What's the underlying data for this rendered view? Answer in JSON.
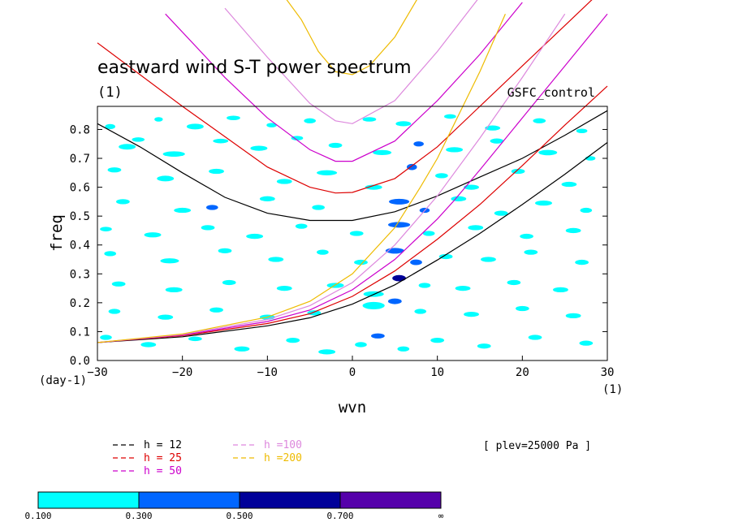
{
  "chart_data": {
    "type": "heatmap",
    "title": "eastward wind S-T power spectrum",
    "title_units": "(1)",
    "run_label": "GSFC_control",
    "xlabel": "wvn",
    "ylabel": "freq",
    "x_units": "(1)",
    "y_units": "(day-1)",
    "xlim": [
      -30,
      30
    ],
    "ylim": [
      0,
      0.88
    ],
    "x_ticks": [
      -30,
      -20,
      -10,
      0,
      10,
      20,
      30
    ],
    "x_tick_labels": [
      "−30",
      "−20",
      "−10",
      "0",
      "10",
      "20",
      "30"
    ],
    "y_ticks": [
      0,
      0.1,
      0.2,
      0.3,
      0.4,
      0.5,
      0.6,
      0.7,
      0.8
    ],
    "y_tick_labels": [
      "0.0",
      "0.1",
      "0.2",
      "0.3",
      "0.4",
      "0.5",
      "0.6",
      "0.7",
      "0.8"
    ],
    "annotation": "[ plev=25000 Pa ]",
    "dispersion_curves": [
      {
        "h": 12,
        "label": "h = 12",
        "color": "#000000",
        "points": [
          [
            -30,
            0.062
          ],
          [
            -20,
            0.082
          ],
          [
            -10,
            0.12
          ],
          [
            -5,
            0.148
          ],
          [
            0,
            0.195
          ],
          [
            5,
            0.262
          ],
          [
            10,
            0.348
          ],
          [
            15,
            0.44
          ],
          [
            20,
            0.54
          ],
          [
            25,
            0.645
          ],
          [
            30,
            0.755
          ]
        ]
      },
      {
        "h": 12,
        "branch": "inertia-gravity",
        "color": "#000000",
        "points": [
          [
            -30,
            0.82
          ],
          [
            -25,
            0.74
          ],
          [
            -20,
            0.65
          ],
          [
            -15,
            0.565
          ],
          [
            -10,
            0.51
          ],
          [
            -5,
            0.485
          ],
          [
            0,
            0.485
          ],
          [
            5,
            0.515
          ],
          [
            10,
            0.57
          ],
          [
            15,
            0.635
          ],
          [
            20,
            0.7
          ],
          [
            25,
            0.78
          ],
          [
            30,
            0.865
          ]
        ]
      },
      {
        "h": 25,
        "label": "h = 25",
        "color": "#dd0000",
        "points": [
          [
            -30,
            0.062
          ],
          [
            -20,
            0.086
          ],
          [
            -10,
            0.128
          ],
          [
            -5,
            0.162
          ],
          [
            0,
            0.222
          ],
          [
            5,
            0.31
          ],
          [
            10,
            0.42
          ],
          [
            15,
            0.54
          ],
          [
            20,
            0.675
          ],
          [
            25,
            0.815
          ],
          [
            30,
            0.95
          ]
        ]
      },
      {
        "h": 25,
        "branch": "inertia-gravity",
        "color": "#dd0000",
        "points": [
          [
            -30,
            1.1
          ],
          [
            -20,
            0.88
          ],
          [
            -10,
            0.67
          ],
          [
            -5,
            0.6
          ],
          [
            -2,
            0.58
          ],
          [
            0,
            0.582
          ],
          [
            5,
            0.63
          ],
          [
            10,
            0.74
          ],
          [
            15,
            0.88
          ],
          [
            20,
            1.02
          ],
          [
            25,
            1.16
          ],
          [
            30,
            1.3
          ]
        ]
      },
      {
        "h": 50,
        "label": "h = 50",
        "color": "#cc00cc",
        "points": [
          [
            -30,
            0.062
          ],
          [
            -20,
            0.088
          ],
          [
            -10,
            0.135
          ],
          [
            -5,
            0.175
          ],
          [
            0,
            0.245
          ],
          [
            5,
            0.35
          ],
          [
            10,
            0.49
          ],
          [
            12,
            0.555
          ],
          [
            15,
            0.66
          ],
          [
            20,
            0.84
          ],
          [
            25,
            1.02
          ],
          [
            30,
            1.2
          ]
        ]
      },
      {
        "h": 50,
        "branch": "inertia-gravity",
        "color": "#cc00cc",
        "points": [
          [
            -22,
            1.2
          ],
          [
            -15,
            0.98
          ],
          [
            -10,
            0.84
          ],
          [
            -5,
            0.73
          ],
          [
            -2,
            0.69
          ],
          [
            0,
            0.69
          ],
          [
            5,
            0.76
          ],
          [
            10,
            0.9
          ],
          [
            15,
            1.06
          ],
          [
            20,
            1.24
          ]
        ]
      },
      {
        "h": 100,
        "label": "h =100",
        "color": "#dd88dd",
        "points": [
          [
            -30,
            0.062
          ],
          [
            -20,
            0.09
          ],
          [
            -10,
            0.142
          ],
          [
            -5,
            0.19
          ],
          [
            0,
            0.27
          ],
          [
            5,
            0.4
          ],
          [
            10,
            0.57
          ],
          [
            15,
            0.77
          ],
          [
            20,
            0.98
          ],
          [
            25,
            1.2
          ]
        ]
      },
      {
        "h": 100,
        "branch": "inertia-gravity",
        "color": "#dd88dd",
        "points": [
          [
            -15,
            1.22
          ],
          [
            -10,
            1.05
          ],
          [
            -5,
            0.89
          ],
          [
            -2,
            0.83
          ],
          [
            0,
            0.82
          ],
          [
            5,
            0.9
          ],
          [
            10,
            1.07
          ],
          [
            15,
            1.26
          ]
        ]
      },
      {
        "h": 200,
        "label": "h =200",
        "color": "#eebb00",
        "points": [
          [
            -30,
            0.062
          ],
          [
            -20,
            0.092
          ],
          [
            -10,
            0.15
          ],
          [
            -5,
            0.205
          ],
          [
            0,
            0.3
          ],
          [
            5,
            0.46
          ],
          [
            8,
            0.6
          ],
          [
            10,
            0.7
          ],
          [
            12,
            0.82
          ],
          [
            15,
            1.0
          ],
          [
            18,
            1.2
          ]
        ]
      },
      {
        "h": 200,
        "branch": "inertia-gravity",
        "color": "#eebb00",
        "points": [
          [
            -9,
            1.3
          ],
          [
            -6,
            1.18
          ],
          [
            -4,
            1.07
          ],
          [
            -2,
            1.0
          ],
          [
            0,
            0.99
          ],
          [
            2,
            1.02
          ],
          [
            5,
            1.12
          ],
          [
            8,
            1.27
          ]
        ]
      }
    ],
    "colorbar": {
      "levels": [
        "0.100",
        "0.300",
        "0.500",
        "0.700",
        "∞"
      ],
      "colors": [
        "#00ffff",
        "#0066ff",
        "#000099",
        "#5500aa"
      ]
    },
    "patches": [
      [
        -28.5,
        0.81,
        1.2,
        0.012,
        0
      ],
      [
        -25.2,
        0.765,
        1.5,
        0.01,
        0
      ],
      [
        -22.8,
        0.835,
        1.0,
        0.01,
        0
      ],
      [
        -18.5,
        0.81,
        2.0,
        0.014,
        0
      ],
      [
        -14.0,
        0.84,
        1.6,
        0.01,
        0
      ],
      [
        -9.5,
        0.815,
        1.2,
        0.01,
        0
      ],
      [
        -5.0,
        0.83,
        1.4,
        0.012,
        0
      ],
      [
        2.0,
        0.835,
        1.6,
        0.01,
        0
      ],
      [
        6.0,
        0.82,
        1.8,
        0.012,
        0
      ],
      [
        11.5,
        0.845,
        1.4,
        0.01,
        0
      ],
      [
        16.5,
        0.805,
        1.8,
        0.012,
        0
      ],
      [
        22.0,
        0.83,
        1.5,
        0.012,
        0
      ],
      [
        27.0,
        0.795,
        1.3,
        0.01,
        0
      ],
      [
        -26.5,
        0.74,
        2.0,
        0.014,
        0
      ],
      [
        -21.0,
        0.715,
        2.6,
        0.013,
        0
      ],
      [
        -15.5,
        0.76,
        1.8,
        0.01,
        0
      ],
      [
        -11.0,
        0.735,
        2.0,
        0.012,
        0
      ],
      [
        -6.5,
        0.77,
        1.4,
        0.01,
        0
      ],
      [
        -2.0,
        0.745,
        1.6,
        0.012,
        0
      ],
      [
        3.5,
        0.72,
        2.2,
        0.012,
        0
      ],
      [
        7.8,
        0.75,
        1.2,
        0.012,
        1
      ],
      [
        12.0,
        0.73,
        2.0,
        0.012,
        0
      ],
      [
        17.0,
        0.76,
        1.6,
        0.012,
        0
      ],
      [
        23.0,
        0.72,
        2.2,
        0.013,
        0
      ],
      [
        28.0,
        0.7,
        1.2,
        0.01,
        0
      ],
      [
        -28.0,
        0.66,
        1.6,
        0.012,
        0
      ],
      [
        -22.0,
        0.63,
        2.0,
        0.014,
        0
      ],
      [
        -16.0,
        0.655,
        1.8,
        0.012,
        0
      ],
      [
        -8.0,
        0.62,
        1.8,
        0.012,
        0
      ],
      [
        -3.0,
        0.65,
        2.4,
        0.012,
        0
      ],
      [
        2.5,
        0.6,
        2.0,
        0.012,
        0
      ],
      [
        7.0,
        0.67,
        1.2,
        0.016,
        1
      ],
      [
        10.5,
        0.64,
        1.5,
        0.012,
        0
      ],
      [
        14.0,
        0.6,
        1.8,
        0.012,
        0
      ],
      [
        19.5,
        0.655,
        1.6,
        0.012,
        0
      ],
      [
        25.5,
        0.61,
        1.8,
        0.012,
        0
      ],
      [
        -27.0,
        0.55,
        1.6,
        0.012,
        0
      ],
      [
        -20.0,
        0.52,
        2.0,
        0.012,
        0
      ],
      [
        -16.5,
        0.53,
        1.4,
        0.012,
        1
      ],
      [
        -10.0,
        0.56,
        1.8,
        0.012,
        0
      ],
      [
        -4.0,
        0.53,
        1.5,
        0.012,
        0
      ],
      [
        5.5,
        0.55,
        2.4,
        0.014,
        1
      ],
      [
        8.5,
        0.52,
        1.2,
        0.012,
        1
      ],
      [
        12.5,
        0.56,
        1.8,
        0.012,
        0
      ],
      [
        17.5,
        0.51,
        1.6,
        0.012,
        0
      ],
      [
        22.5,
        0.545,
        2.0,
        0.012,
        0
      ],
      [
        27.5,
        0.52,
        1.4,
        0.012,
        0
      ],
      [
        -29.0,
        0.455,
        1.4,
        0.01,
        0
      ],
      [
        -23.5,
        0.435,
        2.0,
        0.012,
        0
      ],
      [
        -17.0,
        0.46,
        1.6,
        0.012,
        0
      ],
      [
        -11.5,
        0.43,
        2.0,
        0.012,
        0
      ],
      [
        -6.0,
        0.465,
        1.4,
        0.012,
        0
      ],
      [
        0.5,
        0.44,
        1.6,
        0.012,
        0
      ],
      [
        5.5,
        0.47,
        2.6,
        0.014,
        1
      ],
      [
        9.0,
        0.44,
        1.4,
        0.012,
        0
      ],
      [
        14.5,
        0.46,
        1.8,
        0.012,
        0
      ],
      [
        20.5,
        0.43,
        1.6,
        0.012,
        0
      ],
      [
        26.0,
        0.45,
        1.8,
        0.012,
        0
      ],
      [
        -28.5,
        0.37,
        1.4,
        0.012,
        0
      ],
      [
        -21.5,
        0.345,
        2.2,
        0.012,
        0
      ],
      [
        -15.0,
        0.38,
        1.6,
        0.012,
        0
      ],
      [
        -9.0,
        0.35,
        1.8,
        0.012,
        0
      ],
      [
        -3.5,
        0.375,
        1.4,
        0.012,
        0
      ],
      [
        1.0,
        0.34,
        1.6,
        0.012,
        0
      ],
      [
        5.0,
        0.38,
        2.2,
        0.014,
        1
      ],
      [
        7.5,
        0.34,
        1.4,
        0.014,
        1
      ],
      [
        11.0,
        0.36,
        1.6,
        0.012,
        0
      ],
      [
        16.0,
        0.35,
        1.8,
        0.012,
        0
      ],
      [
        21.0,
        0.375,
        1.6,
        0.012,
        0
      ],
      [
        27.0,
        0.34,
        1.6,
        0.012,
        0
      ],
      [
        -27.5,
        0.265,
        1.6,
        0.012,
        0
      ],
      [
        -21.0,
        0.245,
        2.0,
        0.012,
        0
      ],
      [
        -14.5,
        0.27,
        1.6,
        0.012,
        0
      ],
      [
        -8.0,
        0.25,
        1.8,
        0.012,
        0
      ],
      [
        -2.0,
        0.26,
        2.0,
        0.012,
        0
      ],
      [
        2.5,
        0.23,
        2.4,
        0.014,
        0
      ],
      [
        5.5,
        0.285,
        1.6,
        0.016,
        2
      ],
      [
        8.5,
        0.26,
        1.4,
        0.012,
        0
      ],
      [
        13.0,
        0.25,
        1.8,
        0.012,
        0
      ],
      [
        19.0,
        0.27,
        1.6,
        0.012,
        0
      ],
      [
        24.5,
        0.245,
        1.8,
        0.012,
        0
      ],
      [
        -28.0,
        0.17,
        1.4,
        0.012,
        0
      ],
      [
        -22.0,
        0.15,
        1.8,
        0.012,
        0
      ],
      [
        -16.0,
        0.175,
        1.6,
        0.012,
        0
      ],
      [
        -10.0,
        0.15,
        1.8,
        0.012,
        0
      ],
      [
        -4.5,
        0.165,
        1.6,
        0.012,
        0
      ],
      [
        2.5,
        0.19,
        2.6,
        0.02,
        0
      ],
      [
        5.0,
        0.205,
        1.6,
        0.014,
        1
      ],
      [
        8.0,
        0.17,
        1.4,
        0.012,
        0
      ],
      [
        14.0,
        0.16,
        1.8,
        0.012,
        0
      ],
      [
        20.0,
        0.18,
        1.6,
        0.012,
        0
      ],
      [
        26.0,
        0.155,
        1.8,
        0.012,
        0
      ],
      [
        -29.0,
        0.08,
        1.4,
        0.012,
        0
      ],
      [
        -24.0,
        0.055,
        1.8,
        0.012,
        0
      ],
      [
        -18.5,
        0.075,
        1.6,
        0.01,
        0
      ],
      [
        -13.0,
        0.04,
        1.8,
        0.012,
        0
      ],
      [
        -7.0,
        0.07,
        1.6,
        0.012,
        0
      ],
      [
        -3.0,
        0.03,
        2.0,
        0.012,
        0
      ],
      [
        1.0,
        0.055,
        1.4,
        0.012,
        0
      ],
      [
        3.0,
        0.085,
        1.6,
        0.012,
        1
      ],
      [
        6.0,
        0.04,
        1.4,
        0.012,
        0
      ],
      [
        10.0,
        0.07,
        1.6,
        0.012,
        0
      ],
      [
        15.5,
        0.05,
        1.6,
        0.012,
        0
      ],
      [
        21.5,
        0.08,
        1.6,
        0.012,
        0
      ],
      [
        27.5,
        0.06,
        1.6,
        0.012,
        0
      ]
    ]
  }
}
